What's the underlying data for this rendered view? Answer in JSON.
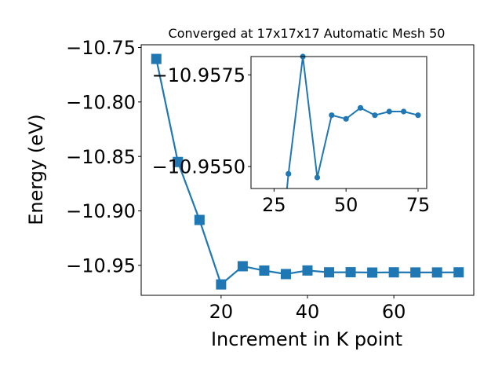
{
  "chart_data": [
    {
      "type": "line",
      "title": "Converged at 17x17x17 Automatic Mesh 50",
      "xlabel": "Increment in K point",
      "ylabel": "Energy (eV)",
      "x": [
        5,
        10,
        15,
        20,
        25,
        30,
        35,
        40,
        45,
        50,
        55,
        60,
        65,
        70,
        75
      ],
      "series": [
        {
          "values": [
            -10.7605,
            -10.8551,
            -10.9083,
            -10.9675,
            -10.9508,
            -10.9548,
            -10.958,
            -10.9547,
            -10.9564,
            -10.9563,
            -10.9566,
            -10.9564,
            -10.9565,
            -10.9565,
            -10.9564
          ],
          "marker": "square",
          "color": "#1f77b4"
        }
      ],
      "xlim": [
        1.5,
        78.5
      ],
      "ylim": [
        -10.9775,
        -10.7475
      ],
      "xticks": [
        20,
        40,
        60
      ],
      "yticks": [
        -10.95,
        -10.9,
        -10.85,
        -10.8,
        -10.75
      ],
      "xtick_labels": [
        "20",
        "40",
        "60"
      ],
      "ytick_labels": [
        "−10.95",
        "−10.90",
        "−10.85",
        "−10.80",
        "−10.75"
      ],
      "grid": false
    },
    {
      "type": "line",
      "x": [
        25,
        30,
        35,
        40,
        45,
        50,
        55,
        60,
        65,
        70,
        75
      ],
      "series": [
        {
          "values": [
            -10.9508,
            -10.9548,
            -10.958,
            -10.9547,
            -10.9564,
            -10.9563,
            -10.9566,
            -10.9564,
            -10.9565,
            -10.9565,
            -10.9564
          ],
          "marker": "circle",
          "color": "#1f77b4"
        }
      ],
      "xlim": [
        17,
        78
      ],
      "ylim": [
        -10.9544,
        -10.958
      ],
      "xticks": [
        25,
        50,
        75
      ],
      "yticks": [
        -10.9575,
        -10.955
      ],
      "xtick_labels": [
        "25",
        "50",
        "75"
      ],
      "ytick_labels": [
        "−10.9575",
        "−10.9550"
      ],
      "grid": false
    }
  ]
}
